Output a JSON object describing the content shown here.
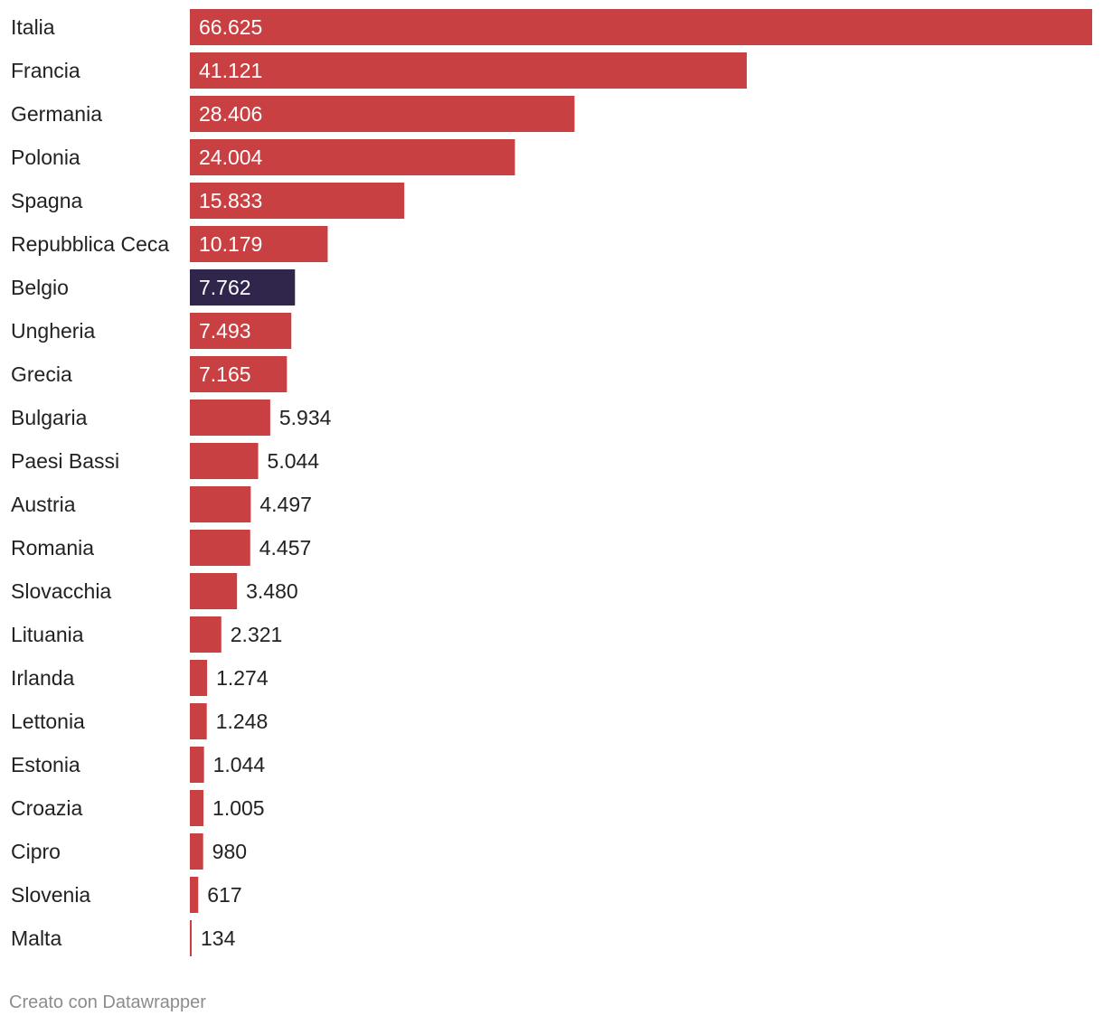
{
  "chart_data": {
    "type": "bar",
    "orientation": "horizontal",
    "categories": [
      "Italia",
      "Francia",
      "Germania",
      "Polonia",
      "Spagna",
      "Repubblica Ceca",
      "Belgio",
      "Ungheria",
      "Grecia",
      "Bulgaria",
      "Paesi Bassi",
      "Austria",
      "Romania",
      "Slovacchia",
      "Lituania",
      "Irlanda",
      "Lettonia",
      "Estonia",
      "Croazia",
      "Cipro",
      "Slovenia",
      "Malta"
    ],
    "values": [
      66625,
      41121,
      28406,
      24004,
      15833,
      10179,
      7762,
      7493,
      7165,
      5934,
      5044,
      4497,
      4457,
      3480,
      2321,
      1274,
      1248,
      1044,
      1005,
      980,
      617,
      134
    ],
    "value_labels": [
      "66.625",
      "41.121",
      "28.406",
      "24.004",
      "15.833",
      "10.179",
      "7.762",
      "7.493",
      "7.165",
      "5.934",
      "5.044",
      "4.497",
      "4.457",
      "3.480",
      "2.321",
      "1.274",
      "1.248",
      "1.044",
      "1.005",
      "980",
      "617",
      "134"
    ],
    "highlight": "Belgio",
    "xlim": [
      0,
      66625
    ],
    "grid": false,
    "colors": {
      "bar": "#c94043",
      "highlight": "#30264c",
      "label_inside": "#ffffff",
      "label_outside": "#222222",
      "category_text": "#222222"
    }
  },
  "footer": {
    "credit": "Creato con Datawrapper"
  }
}
